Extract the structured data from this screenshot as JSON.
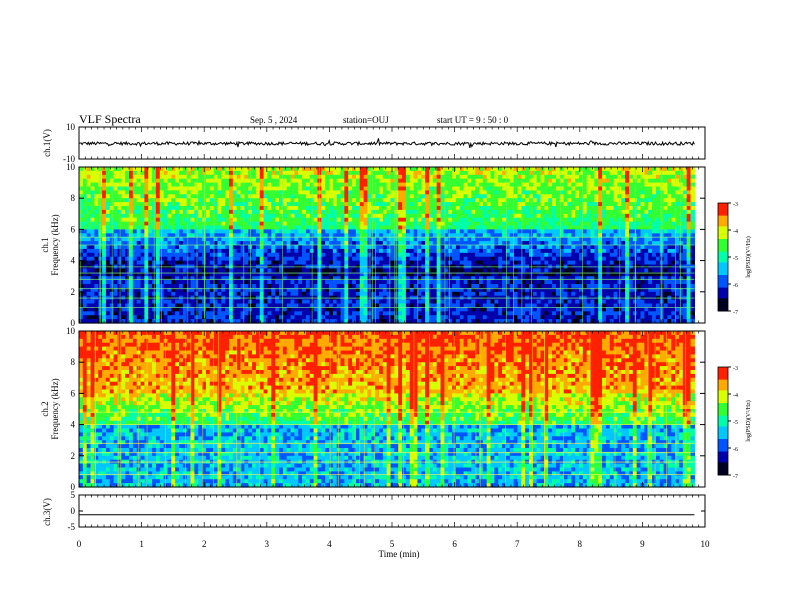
{
  "header": {
    "title": "VLF Spectra",
    "date": "Sep. 5  , 2024",
    "station": "station=OUJ",
    "start": "start  UT  =   9  : 50 : 0"
  },
  "chart_data": [
    {
      "type": "line",
      "panel": "ch1-waveform",
      "ylabel": "ch.1(V)",
      "ylim": [
        -10,
        10
      ],
      "yticks": [
        "10",
        "-10"
      ],
      "baseline": -0.3
    },
    {
      "type": "heatmap",
      "panel": "ch1-spectrogram",
      "ylabel": "ch.1\nFrequency (kHz)",
      "ylim": [
        0,
        10
      ],
      "yticks": [
        "0",
        "2",
        "4",
        "6",
        "8",
        "10"
      ],
      "colorbar": {
        "label": "log(PSD)(V²/Hz)",
        "range": [
          -7,
          -3
        ],
        "ticks": [
          "-3",
          "-4",
          "-5",
          "-6",
          "-7"
        ]
      }
    },
    {
      "type": "heatmap",
      "panel": "ch2-spectrogram",
      "ylabel": "ch.2\nFrequency (kHz)",
      "ylim": [
        0,
        10
      ],
      "yticks": [
        "0",
        "2",
        "4",
        "6",
        "8",
        "10"
      ],
      "colorbar": {
        "label": "log(PSD)(V²/Hz)",
        "range": [
          -7,
          -3
        ],
        "ticks": [
          "-3",
          "-4",
          "-5",
          "-6",
          "-7"
        ]
      }
    },
    {
      "type": "line",
      "panel": "ch3-waveform",
      "ylabel": "ch.3(V)",
      "ylim": [
        -5,
        5
      ],
      "yticks": [
        "5",
        "0",
        "-5"
      ],
      "baseline": -1.2
    }
  ],
  "xaxis": {
    "label": "Time  (min)",
    "range": [
      0,
      10
    ],
    "ticks": [
      "0",
      "1",
      "2",
      "3",
      "4",
      "5",
      "6",
      "7",
      "8",
      "9",
      "10"
    ],
    "data_end": 9.83
  },
  "colors": {
    "palette": [
      "#000022",
      "#0000aa",
      "#0055ff",
      "#00c8ff",
      "#00ffaa",
      "#33ff33",
      "#d8ff00",
      "#ffaa00",
      "#ff2000"
    ]
  }
}
